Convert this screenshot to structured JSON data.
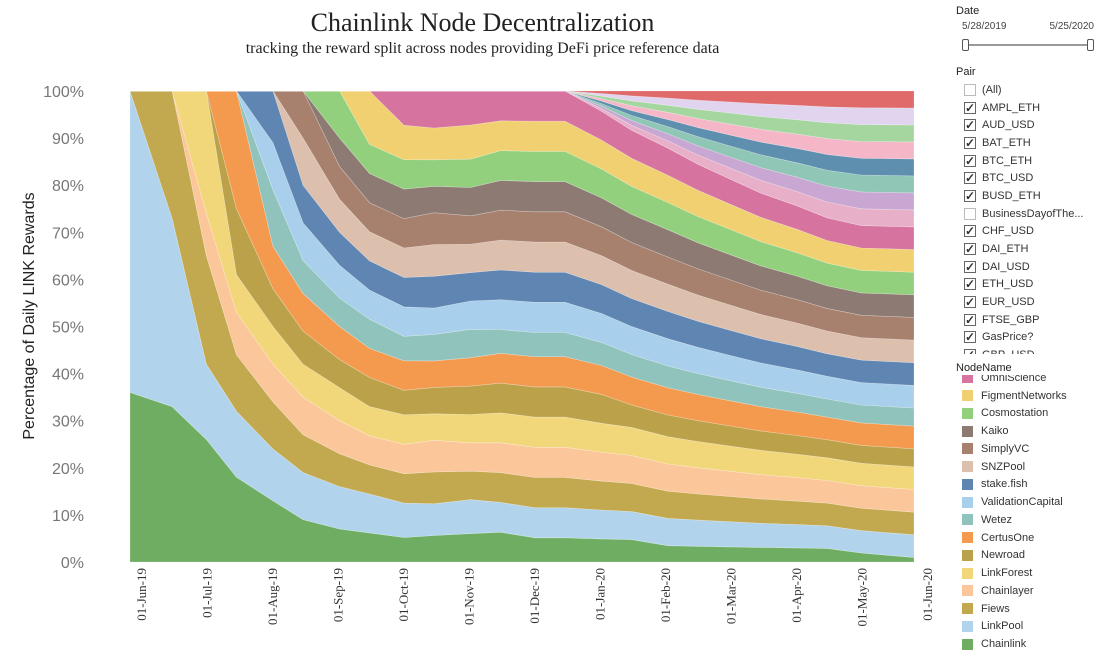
{
  "title": "Chainlink Node Decentralization",
  "subtitle": "tracking the reward split across nodes providing DeFi price reference data",
  "date_filter": {
    "title": "Date",
    "start": "5/28/2019",
    "end": "5/25/2020"
  },
  "pair_filter": {
    "title": "Pair",
    "items": [
      {
        "label": "(All)",
        "checked": false
      },
      {
        "label": "AMPL_ETH",
        "checked": true
      },
      {
        "label": "AUD_USD",
        "checked": true
      },
      {
        "label": "BAT_ETH",
        "checked": true
      },
      {
        "label": "BTC_ETH",
        "checked": true
      },
      {
        "label": "BTC_USD",
        "checked": true
      },
      {
        "label": "BUSD_ETH",
        "checked": true
      },
      {
        "label": "BusinessDayofThe...",
        "checked": false
      },
      {
        "label": "CHF_USD",
        "checked": true
      },
      {
        "label": "DAI_ETH",
        "checked": true
      },
      {
        "label": "DAI_USD",
        "checked": true
      },
      {
        "label": "ETH_USD",
        "checked": true
      },
      {
        "label": "EUR_USD",
        "checked": true
      },
      {
        "label": "FTSE_GBP",
        "checked": true
      },
      {
        "label": "GasPrice?",
        "checked": true
      },
      {
        "label": "GBP_USD",
        "checked": true
      }
    ]
  },
  "node_legend": {
    "title": "NodeName",
    "items": [
      {
        "label": "OmniScience",
        "color": "#d6739e"
      },
      {
        "label": "FigmentNetworks",
        "color": "#f0d070"
      },
      {
        "label": "Cosmostation",
        "color": "#93d07e"
      },
      {
        "label": "Kaiko",
        "color": "#8c7a73"
      },
      {
        "label": "SimplyVC",
        "color": "#a8806e"
      },
      {
        "label": "SNZPool",
        "color": "#dcbfad"
      },
      {
        "label": "stake.fish",
        "color": "#5f86b3"
      },
      {
        "label": "ValidationCapital",
        "color": "#a8cfeb"
      },
      {
        "label": "Wetez",
        "color": "#90c3bc"
      },
      {
        "label": "CertusOne",
        "color": "#f39a4f"
      },
      {
        "label": "Newroad",
        "color": "#bba24a"
      },
      {
        "label": "LinkForest",
        "color": "#f1d67a"
      },
      {
        "label": "Chainlayer",
        "color": "#fbc79a"
      },
      {
        "label": "Fiews",
        "color": "#c2a84e"
      },
      {
        "label": "LinkPool",
        "color": "#b1d4ec"
      },
      {
        "label": "Chainlink",
        "color": "#6fae62"
      }
    ]
  },
  "chart_data": {
    "type": "area",
    "stacked": true,
    "normalized": true,
    "title": "Chainlink Node Decentralization",
    "subtitle": "tracking the reward split across nodes providing DeFi price reference data",
    "ylabel": "Percentage of Daily LINK Rewards",
    "xlabel": "",
    "ylim": [
      0,
      100
    ],
    "yticks": [
      "0%",
      "10%",
      "20%",
      "30%",
      "40%",
      "50%",
      "60%",
      "70%",
      "80%",
      "90%",
      "100%"
    ],
    "xticks": [
      "01-Jun-19",
      "01-Jul-19",
      "01-Aug-19",
      "01-Sep-19",
      "01-Oct-19",
      "01-Nov-19",
      "01-Dec-19",
      "01-Jan-20",
      "01-Feb-20",
      "01-Mar-20",
      "01-Apr-20",
      "01-May-20",
      "01-Jun-20"
    ],
    "x_dates": [
      "2019-06-01",
      "2019-06-15",
      "2019-07-01",
      "2019-07-15",
      "2019-08-01",
      "2019-08-15",
      "2019-09-01",
      "2019-09-15",
      "2019-10-01",
      "2019-10-15",
      "2019-11-01",
      "2019-11-15",
      "2019-12-01",
      "2019-12-15",
      "2020-01-01",
      "2020-01-15",
      "2020-02-01",
      "2020-02-15",
      "2020-03-01",
      "2020-03-15",
      "2020-04-01",
      "2020-04-15",
      "2020-05-01",
      "2020-05-25"
    ],
    "series": [
      {
        "name": "Chainlink",
        "values": [
          36,
          33,
          26,
          18,
          13,
          9,
          7,
          6,
          5,
          5,
          5,
          5,
          4,
          4,
          4,
          4,
          3,
          3,
          3,
          3,
          3,
          3,
          2,
          1
        ]
      },
      {
        "name": "LinkPool",
        "values": [
          64,
          40,
          16,
          14,
          11,
          10,
          9,
          8,
          7,
          6,
          6,
          5,
          5,
          5,
          5,
          5,
          5,
          5,
          5,
          5,
          5,
          5,
          5,
          5
        ]
      },
      {
        "name": "Fiews",
        "values": [
          0,
          27,
          23,
          12,
          10,
          8,
          7,
          6,
          6,
          6,
          5,
          5,
          5,
          5,
          5,
          5,
          5,
          5,
          5,
          5,
          5,
          5,
          5,
          5
        ]
      },
      {
        "name": "Chainlayer",
        "values": [
          0,
          0,
          9,
          9,
          8,
          8,
          7,
          6,
          6,
          6,
          5,
          5,
          5,
          5,
          5,
          5,
          5,
          5,
          5,
          5,
          5,
          5,
          5,
          5
        ]
      },
      {
        "name": "LinkForest",
        "values": [
          0,
          0,
          26,
          8,
          8,
          7,
          7,
          6,
          6,
          5,
          5,
          5,
          5,
          5,
          5,
          5,
          5,
          5,
          5,
          5,
          5,
          5,
          5,
          5
        ]
      },
      {
        "name": "Newroad",
        "values": [
          0,
          0,
          0,
          14,
          8,
          7,
          6,
          6,
          5,
          5,
          5,
          5,
          5,
          5,
          5,
          4,
          4,
          4,
          4,
          4,
          4,
          4,
          4,
          4
        ]
      },
      {
        "name": "CertusOne",
        "values": [
          0,
          0,
          0,
          25,
          9,
          8,
          7,
          6,
          6,
          5,
          5,
          5,
          5,
          5,
          5,
          5,
          5,
          5,
          5,
          5,
          5,
          5,
          5,
          5
        ]
      },
      {
        "name": "Wetez",
        "values": [
          0,
          0,
          0,
          0,
          12,
          7,
          6,
          6,
          5,
          5,
          5,
          4,
          4,
          4,
          4,
          4,
          4,
          4,
          4,
          4,
          4,
          4,
          4,
          4
        ]
      },
      {
        "name": "ValidationCapital",
        "values": [
          0,
          0,
          0,
          0,
          10,
          8,
          7,
          6,
          6,
          5,
          5,
          5,
          5,
          5,
          5,
          5,
          5,
          5,
          5,
          5,
          5,
          5,
          5,
          5
        ]
      },
      {
        "name": "stake.fish",
        "values": [
          0,
          0,
          0,
          0,
          11,
          8,
          7,
          6,
          6,
          6,
          5,
          5,
          5,
          5,
          5,
          5,
          5,
          5,
          5,
          5,
          5,
          5,
          5,
          5
        ]
      },
      {
        "name": "SNZPool",
        "values": [
          0,
          0,
          0,
          0,
          0,
          10,
          7,
          6,
          6,
          6,
          5,
          5,
          5,
          5,
          5,
          5,
          5,
          5,
          5,
          5,
          5,
          5,
          5,
          5
        ]
      },
      {
        "name": "SimplyVC",
        "values": [
          0,
          0,
          0,
          0,
          0,
          10,
          7,
          6,
          6,
          6,
          5,
          5,
          5,
          5,
          5,
          5,
          5,
          5,
          5,
          5,
          5,
          5,
          5,
          5
        ]
      },
      {
        "name": "Kaiko",
        "values": [
          0,
          0,
          0,
          0,
          0,
          0,
          6,
          6,
          6,
          5,
          5,
          5,
          5,
          5,
          5,
          5,
          5,
          5,
          5,
          5,
          5,
          5,
          5,
          5
        ]
      },
      {
        "name": "Cosmostation",
        "values": [
          0,
          0,
          0,
          0,
          0,
          0,
          10,
          6,
          6,
          5,
          5,
          5,
          5,
          5,
          5,
          5,
          5,
          5,
          5,
          5,
          5,
          5,
          5,
          5
        ]
      },
      {
        "name": "FigmentNetworks",
        "values": [
          0,
          0,
          0,
          0,
          0,
          0,
          0,
          11,
          7,
          6,
          6,
          5,
          5,
          5,
          5,
          5,
          5,
          5,
          5,
          5,
          5,
          5,
          5,
          5
        ]
      },
      {
        "name": "OmniScience",
        "values": [
          0,
          0,
          0,
          0,
          0,
          0,
          0,
          0,
          7,
          7,
          6,
          5,
          5,
          5,
          5,
          5,
          5,
          5,
          5,
          5,
          5,
          5,
          5,
          5
        ]
      }
    ],
    "other_series_note": "",
    "top_layers": [
      {
        "color": "#e8b0c8"
      },
      {
        "color": "#c9a7d3"
      },
      {
        "color": "#8fc6b5"
      },
      {
        "color": "#5f8fae"
      },
      {
        "color": "#f5b7c8"
      },
      {
        "color": "#a6d6a0"
      },
      {
        "color": "#e0d4ef"
      },
      {
        "color": "#e06a6a"
      }
    ],
    "legend_position": "right",
    "grid": false
  }
}
